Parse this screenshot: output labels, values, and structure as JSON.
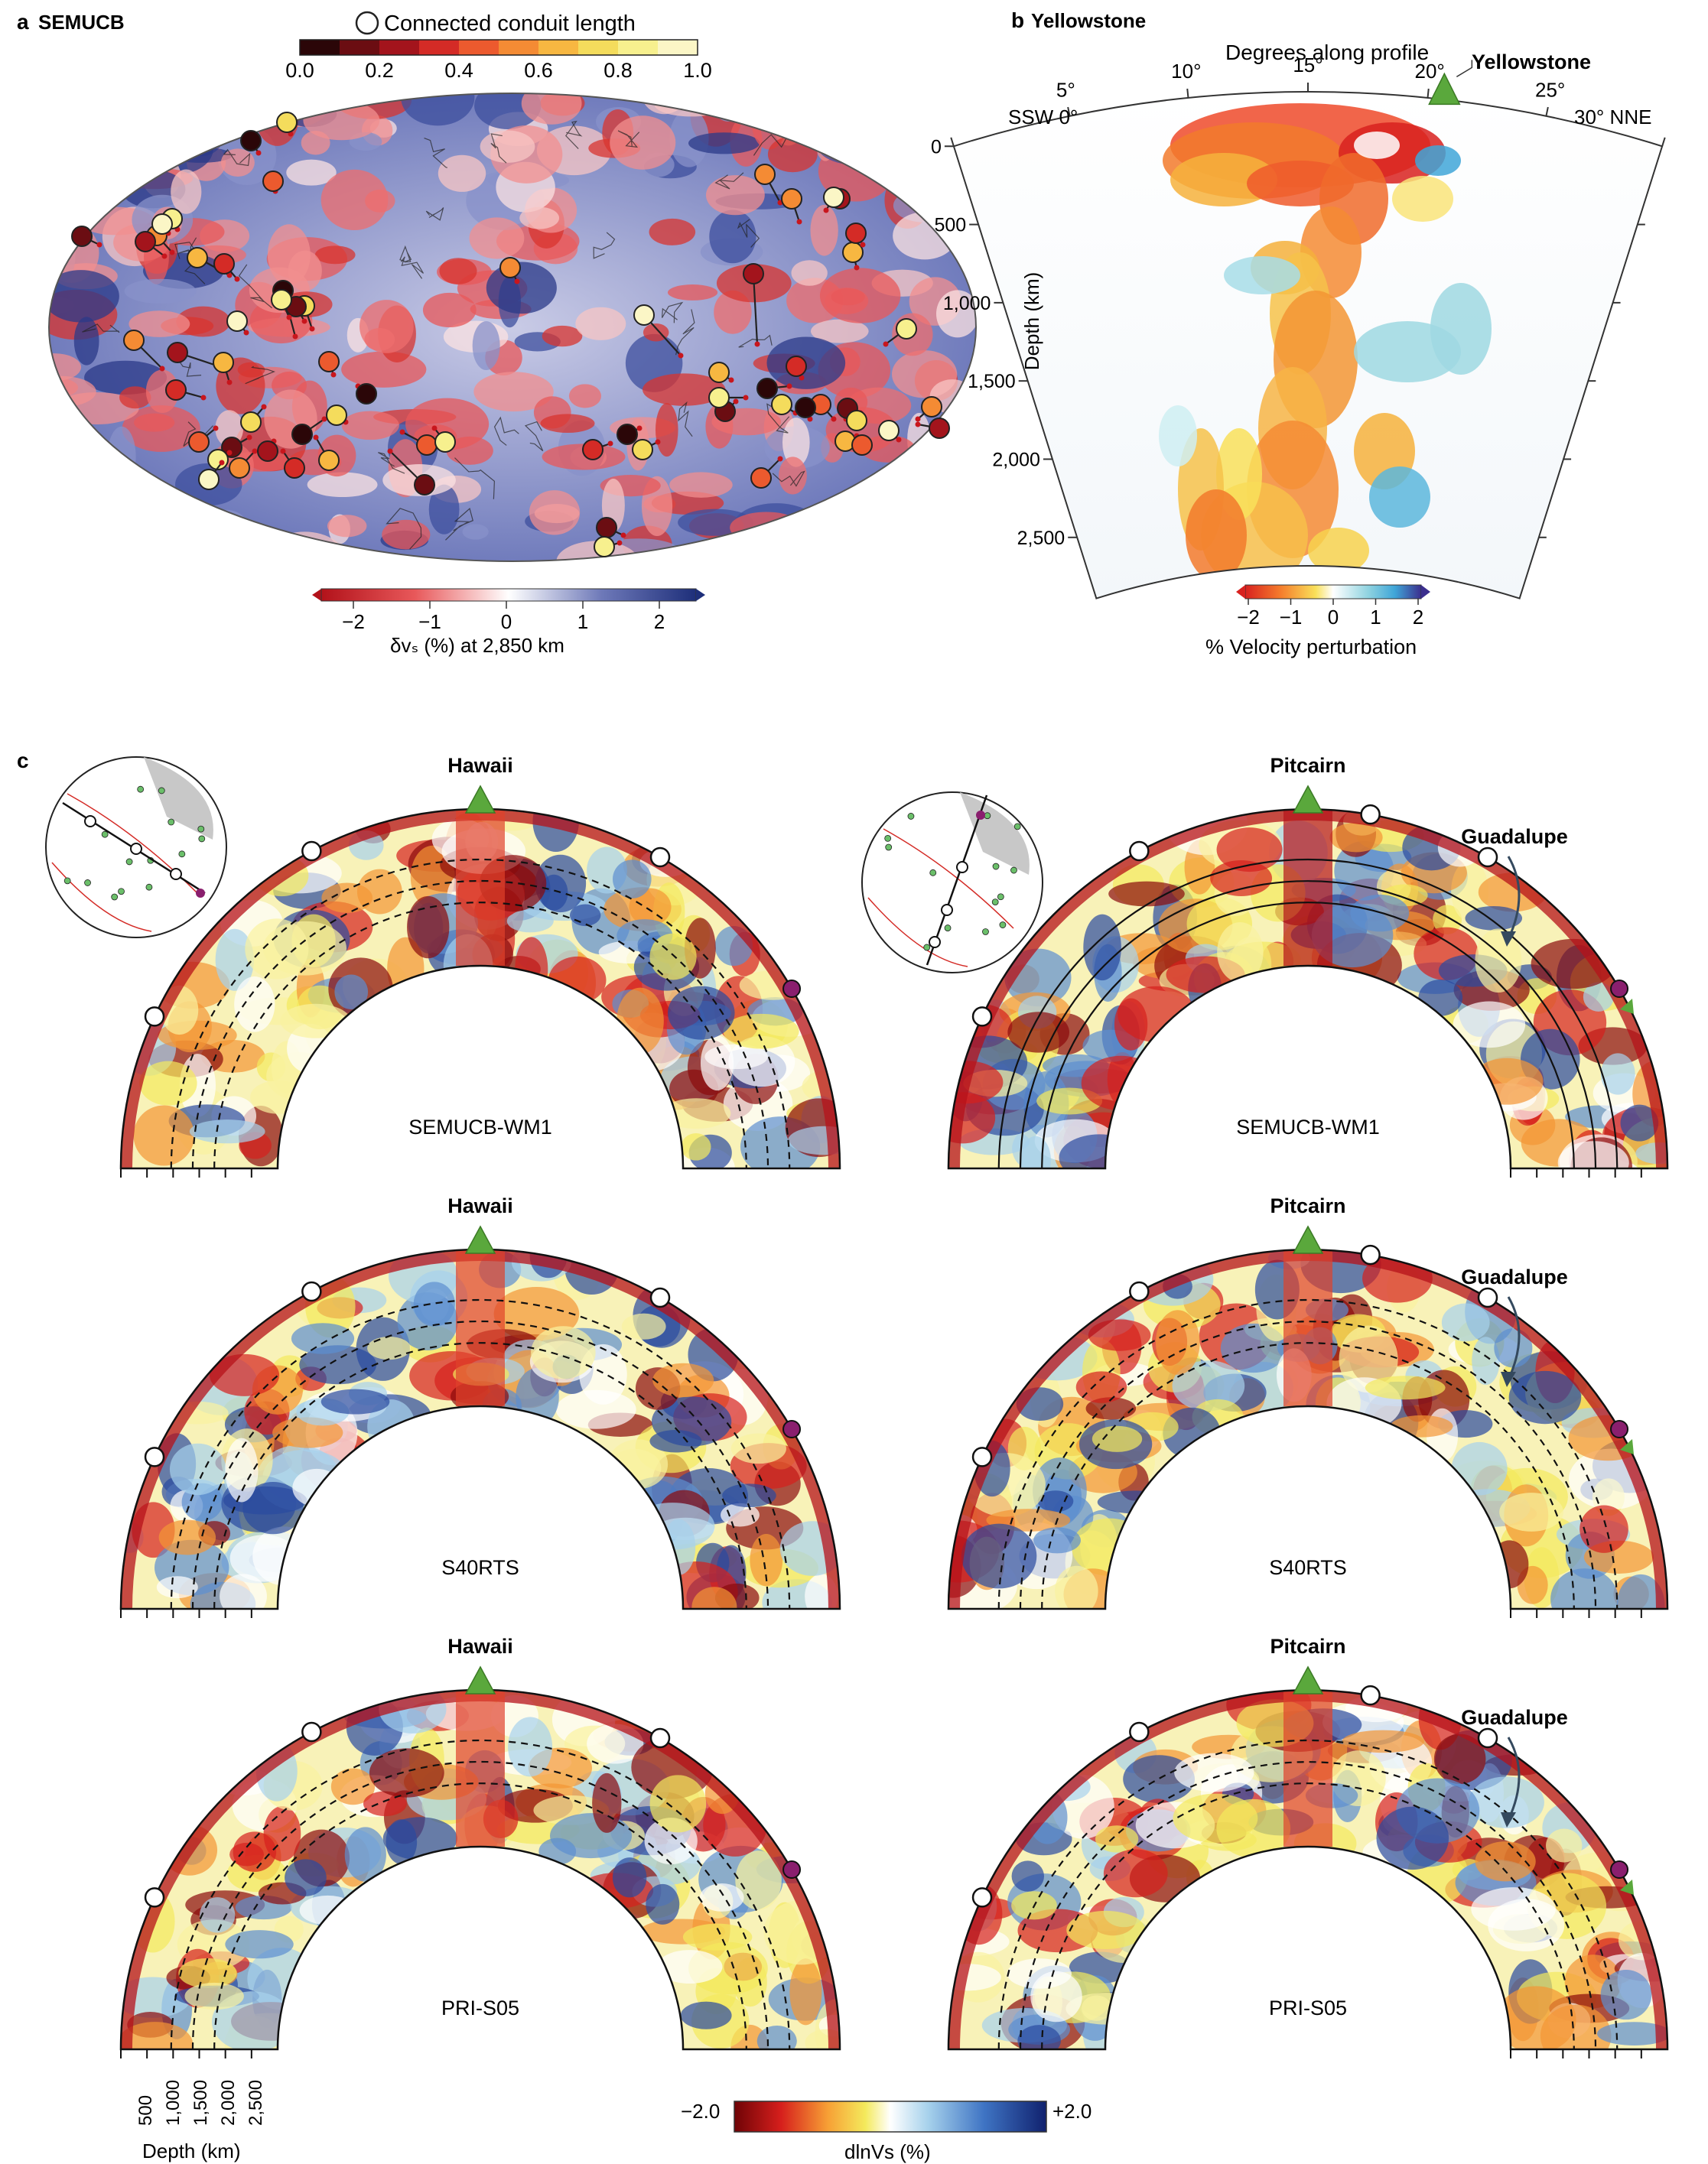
{
  "panel_a": {
    "letter": "a",
    "title": "SEMUCB",
    "conduit_legend": "Connected conduit length",
    "conduit_ticks": [
      "0.0",
      "0.2",
      "0.4",
      "0.6",
      "0.8",
      "1.0"
    ],
    "conduit_colors": [
      "#2b0608",
      "#6b0d12",
      "#a3141c",
      "#d42b26",
      "#ec5a2e",
      "#f48b34",
      "#f7b741",
      "#f4dc5c",
      "#f7f08e",
      "#fbf6c6"
    ],
    "velocity_ticks": [
      "−2",
      "−1",
      "0",
      "1",
      "2"
    ],
    "velocity_label": "δvₛ (%) at 2,850 km"
  },
  "panel_b": {
    "letter": "b",
    "title": "Yellowstone",
    "degrees_label": "Degrees along profile",
    "hotspot": "Yellowstone",
    "left_end": "SSW 0°",
    "right_end": "30° NNE",
    "degree_ticks": [
      "5°",
      "10°",
      "15°",
      "20°",
      "25°"
    ],
    "depth_label": "Depth (km)",
    "depth_ticks": [
      "0",
      "500",
      "1,000",
      "1,500",
      "2,000",
      "2,500"
    ],
    "colorbar_ticks": [
      "−2",
      "−1",
      "0",
      "1",
      "2"
    ],
    "colorbar_label": "% Velocity perturbation"
  },
  "panel_c": {
    "letter": "c",
    "models": [
      "SEMUCB-WM1",
      "S40RTS",
      "PRI-S05"
    ],
    "left_hotspot": "Hawaii",
    "right_hotspot": "Pitcairn",
    "right_label_2": "Guadalupe",
    "depth_ticks": [
      "500",
      "1,000",
      "1,500",
      "2,000",
      "2,500"
    ],
    "depth_axis_label": "Depth (km)",
    "colorbar_min": "−2.0",
    "colorbar_max": "+2.0",
    "colorbar_label": "dlnVs (%)"
  },
  "colors": {
    "slow": "#c8161d",
    "fast": "#23367f",
    "hotspot_triangle": "#5aa83c",
    "guadalupe_marker": "#8a1f6e"
  }
}
